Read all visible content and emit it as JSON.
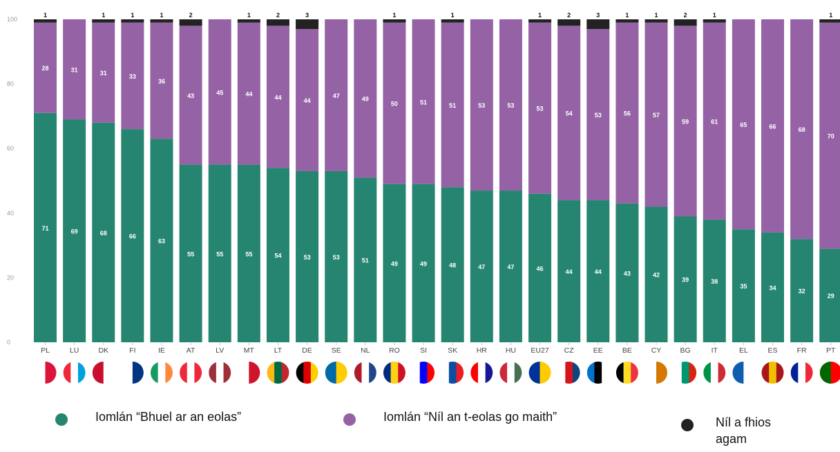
{
  "chart_data": {
    "type": "bar",
    "stacked": true,
    "ylim": [
      0,
      100
    ],
    "yticks": [
      0,
      20,
      40,
      60,
      80,
      100
    ],
    "grid": false,
    "categories": [
      "PL",
      "LU",
      "DK",
      "FI",
      "IE",
      "AT",
      "LV",
      "MT",
      "LT",
      "DE",
      "SE",
      "NL",
      "RO",
      "SI",
      "SK",
      "HR",
      "HU",
      "EU27",
      "CZ",
      "EE",
      "BE",
      "CY",
      "BG",
      "IT",
      "EL",
      "ES",
      "FR",
      "PT"
    ],
    "series": [
      {
        "name": "Iomlán “Bhuel ar an eolas”",
        "color": "#268570",
        "values": [
          71,
          69,
          68,
          66,
          63,
          55,
          55,
          55,
          54,
          53,
          53,
          51,
          49,
          49,
          48,
          47,
          47,
          46,
          44,
          44,
          43,
          42,
          39,
          38,
          35,
          34,
          32,
          29
        ]
      },
      {
        "name": "Iomlán “Níl an t-eolas go maith”",
        "color": "#9563a5",
        "values": [
          28,
          31,
          31,
          33,
          36,
          43,
          45,
          44,
          44,
          44,
          47,
          49,
          50,
          51,
          51,
          53,
          53,
          53,
          54,
          53,
          56,
          57,
          59,
          61,
          65,
          66,
          68,
          70
        ]
      },
      {
        "name": "Níl a fhios agam",
        "color": "#222222",
        "values": [
          1,
          null,
          1,
          1,
          1,
          2,
          null,
          1,
          2,
          3,
          null,
          null,
          1,
          null,
          1,
          null,
          null,
          1,
          2,
          3,
          1,
          1,
          2,
          1,
          null,
          null,
          null,
          1
        ]
      }
    ]
  },
  "legend": [
    {
      "label": "Iomlán “Bhuel ar an eolas”",
      "color": "#268570"
    },
    {
      "label": "Iomlán “Níl an t-eolas go maith”",
      "color": "#9563a5"
    },
    {
      "label": "Níl a fhios agam",
      "color": "#222222"
    }
  ],
  "flags": {
    "PL": [
      "#ffffff",
      "#dc143c"
    ],
    "LU": [
      "#ed2939",
      "#ffffff",
      "#00a1de"
    ],
    "DK": [
      "#c8102e",
      "#ffffff"
    ],
    "FI": [
      "#ffffff",
      "#003580"
    ],
    "IE": [
      "#169b62",
      "#ffffff",
      "#ff883e"
    ],
    "AT": [
      "#ed2939",
      "#ffffff",
      "#ed2939"
    ],
    "LV": [
      "#9e3039",
      "#ffffff",
      "#9e3039"
    ],
    "MT": [
      "#ffffff",
      "#cf142b"
    ],
    "LT": [
      "#fdb913",
      "#006a44",
      "#c1272d"
    ],
    "DE": [
      "#000000",
      "#dd0000",
      "#ffce00"
    ],
    "SE": [
      "#006aa7",
      "#fecc00"
    ],
    "NL": [
      "#ae1c28",
      "#ffffff",
      "#21468b"
    ],
    "RO": [
      "#002b7f",
      "#fcd116",
      "#ce1126"
    ],
    "SI": [
      "#ffffff",
      "#0000ff",
      "#ff0000"
    ],
    "SK": [
      "#ffffff",
      "#0b4ea2",
      "#ee1c25"
    ],
    "HR": [
      "#ff0000",
      "#ffffff",
      "#171796"
    ],
    "HU": [
      "#ce2939",
      "#ffffff",
      "#477050"
    ],
    "EU27": [
      "#003399",
      "#ffcc00"
    ],
    "CZ": [
      "#ffffff",
      "#d7141a",
      "#11457e"
    ],
    "EE": [
      "#0072ce",
      "#000000",
      "#ffffff"
    ],
    "BE": [
      "#000000",
      "#fdda24",
      "#ef3340"
    ],
    "CY": [
      "#ffffff",
      "#d57800"
    ],
    "BG": [
      "#ffffff",
      "#00966e",
      "#d62612"
    ],
    "IT": [
      "#009246",
      "#ffffff",
      "#ce2b37"
    ],
    "EL": [
      "#0d5eaf",
      "#ffffff"
    ],
    "ES": [
      "#aa151b",
      "#f1bf00",
      "#aa151b"
    ],
    "FR": [
      "#002395",
      "#ffffff",
      "#ed2939"
    ],
    "PT": [
      "#006600",
      "#ff0000"
    ]
  }
}
